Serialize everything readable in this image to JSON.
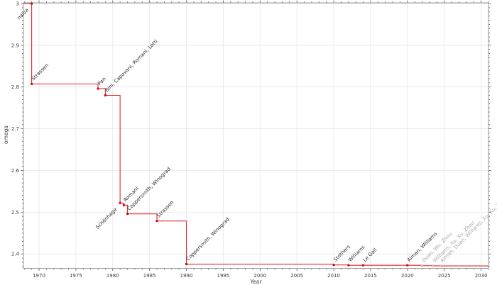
{
  "chart_data": {
    "type": "line",
    "subtype": "step-after",
    "title": "",
    "xlabel": "Year",
    "ylabel": "omega",
    "xlim": [
      1967.88,
      2031.0
    ],
    "ylim": [
      2.3655,
      3.0017
    ],
    "grid": true,
    "legend": "none",
    "x_major_ticks": [
      1970,
      1975,
      1980,
      1985,
      1990,
      1995,
      2000,
      2005,
      2010,
      2015,
      2020,
      2025,
      2030
    ],
    "x_minor_step": 1,
    "y_major_ticks": [
      {
        "value": 2.4,
        "label": "2.4"
      },
      {
        "value": 2.5,
        "label": "2.5"
      },
      {
        "value": 2.6,
        "label": "2.6"
      },
      {
        "value": 2.7,
        "label": "2.7"
      },
      {
        "value": 2.8,
        "label": "2.8"
      },
      {
        "value": 2.9,
        "label": "2.9"
      },
      {
        "value": 3.0,
        "label": "3"
      }
    ],
    "y_minor_step": 0.01,
    "colors": {
      "line": "#e5262b",
      "marker": "#c21414",
      "muted_marker": "#f2a3a6",
      "label": "#2e2e2e",
      "muted_label": "#a6a6a6"
    },
    "points": [
      {
        "label": "naive",
        "year": 1969,
        "omega": 3.0,
        "anchor": "end",
        "muted": false
      },
      {
        "label": "Strassen",
        "year": 1969,
        "omega": 2.8074,
        "anchor": "start",
        "muted": false
      },
      {
        "label": "Pan",
        "year": 1978,
        "omega": 2.796,
        "anchor": "start",
        "muted": false
      },
      {
        "label": "Bini, Capovani, Romani, Lotti",
        "year": 1979,
        "omega": 2.78,
        "anchor": "start",
        "muted": false
      },
      {
        "label": "Schönhage",
        "year": 1981,
        "omega": 2.522,
        "anchor": "end",
        "muted": false
      },
      {
        "label": "Romani",
        "year": 1981.5,
        "omega": 2.517,
        "anchor": "start",
        "muted": false
      },
      {
        "label": "Coppersmith, Winograd",
        "year": 1982,
        "omega": 2.496,
        "anchor": "start",
        "muted": false
      },
      {
        "label": "Strassen",
        "year": 1986,
        "omega": 2.479,
        "anchor": "start",
        "muted": false
      },
      {
        "label": "Coppersmith, Winograd",
        "year": 1990,
        "omega": 2.3755,
        "anchor": "start",
        "muted": false
      },
      {
        "label": "Stothers",
        "year": 2010,
        "omega": 2.3737,
        "anchor": "start",
        "muted": false
      },
      {
        "label": "Williams",
        "year": 2012,
        "omega": 2.3729,
        "anchor": "start",
        "muted": false
      },
      {
        "label": "Le Gall",
        "year": 2014,
        "omega": 2.3728639,
        "anchor": "start",
        "muted": false
      },
      {
        "label": "Alman, Williams",
        "year": 2020,
        "omega": 2.3728596,
        "anchor": "start",
        "muted": false
      },
      {
        "label": "Duan, Wu, Zhou",
        "year": 2022,
        "omega": 2.371866,
        "anchor": "start",
        "muted": true
      },
      {
        "label": "Williams, Xu, Xu, Zhou",
        "year": 2023.5,
        "omega": 2.371552,
        "anchor": "start",
        "muted": true
      },
      {
        "label": "Alman, Duan, Williams, Xu, Xu, Zhou",
        "year": 2024.5,
        "omega": 2.371339,
        "anchor": "start",
        "muted": true
      }
    ]
  }
}
